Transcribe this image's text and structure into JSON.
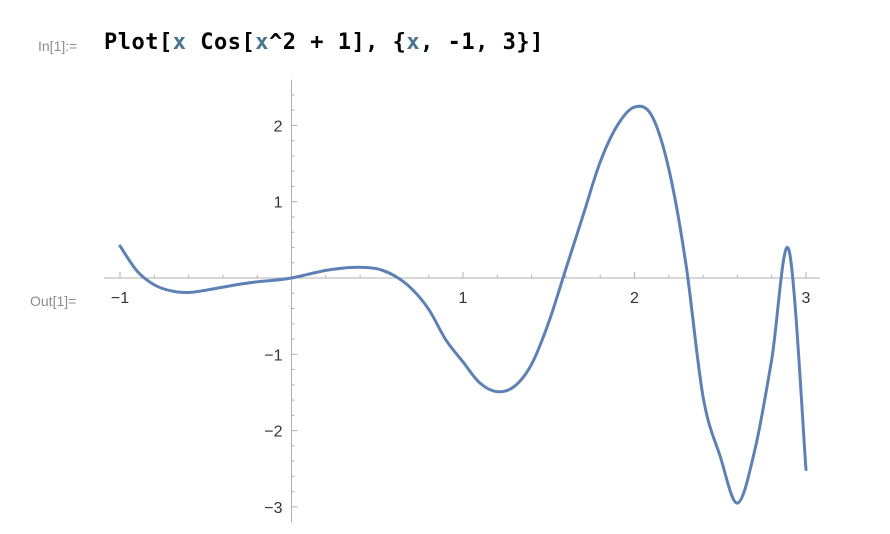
{
  "notebook": {
    "input_label": "In[1]:=",
    "output_label": "Out[1]=",
    "input_tokens": [
      {
        "text": "Plot[",
        "kind": "plain"
      },
      {
        "text": "x",
        "kind": "var"
      },
      {
        "text": " Cos[",
        "kind": "plain"
      },
      {
        "text": "x",
        "kind": "var"
      },
      {
        "text": "^2 + 1], {",
        "kind": "plain"
      },
      {
        "text": "x",
        "kind": "var"
      },
      {
        "text": ", -1, 3}]",
        "kind": "plain"
      }
    ]
  },
  "chart_data": {
    "type": "line",
    "title": "",
    "xlabel": "",
    "ylabel": "",
    "function": "x Cos[x^2 + 1]",
    "xlim": [
      -1,
      3
    ],
    "ylim": [
      -3.2,
      2.6
    ],
    "grid": false,
    "x_ticks": [
      {
        "value": -1,
        "label": "−1"
      },
      {
        "value": 1,
        "label": "1"
      },
      {
        "value": 2,
        "label": "2"
      },
      {
        "value": 3,
        "label": "3"
      }
    ],
    "y_ticks": [
      {
        "value": 2,
        "label": "2"
      },
      {
        "value": 1,
        "label": "1"
      },
      {
        "value": -1,
        "label": "−1"
      },
      {
        "value": -2,
        "label": "−2"
      },
      {
        "value": -3,
        "label": "−3"
      }
    ],
    "series": [
      {
        "color": "#5e81b5",
        "x": [
          -1.0,
          -0.9,
          -0.8,
          -0.7,
          -0.6,
          -0.5,
          -0.4,
          -0.3,
          -0.2,
          -0.1,
          0.0,
          0.1,
          0.2,
          0.3,
          0.4,
          0.5,
          0.6,
          0.7,
          0.8,
          0.9,
          1.0,
          1.1,
          1.2,
          1.3,
          1.4,
          1.5,
          1.6,
          1.7,
          1.8,
          1.9,
          2.0,
          2.1,
          2.2,
          2.3,
          2.4,
          2.5,
          2.6,
          2.7,
          2.8,
          2.9,
          3.0
        ],
        "y": [
          0.42,
          0.09,
          -0.09,
          -0.17,
          -0.19,
          -0.16,
          -0.12,
          -0.08,
          -0.05,
          -0.03,
          0.0,
          0.05,
          0.1,
          0.13,
          0.14,
          0.12,
          0.03,
          -0.14,
          -0.41,
          -0.81,
          -1.1,
          -1.38,
          -1.49,
          -1.42,
          -1.13,
          -0.58,
          0.12,
          0.82,
          1.52,
          2.0,
          2.24,
          2.13,
          1.43,
          0.18,
          -1.56,
          -2.34,
          -2.95,
          -2.27,
          -1.07,
          0.37,
          -2.51
        ]
      }
    ]
  }
}
